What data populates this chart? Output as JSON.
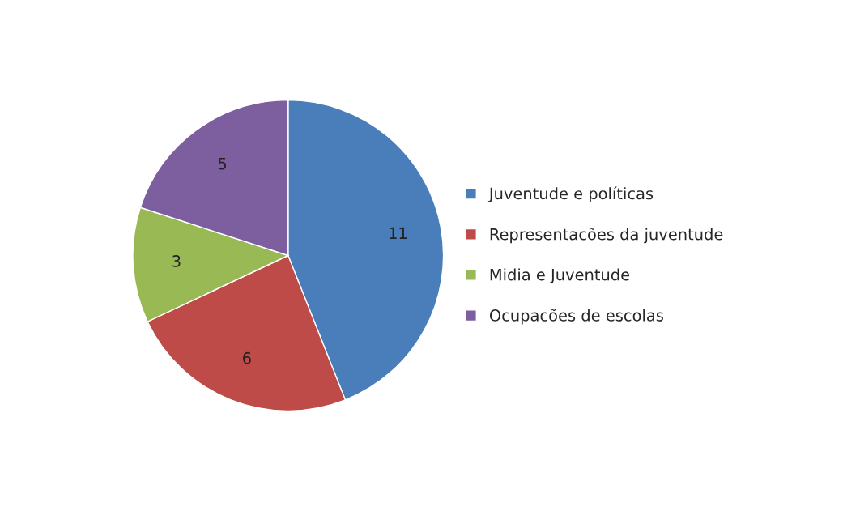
{
  "chart_data": {
    "type": "pie",
    "categories": [
      "Juventude e políticas",
      "Representacões da juventude",
      "Midia e Juventude",
      "Ocupacões de escolas"
    ],
    "values": [
      11,
      6,
      3,
      5
    ],
    "colors": [
      "#4a7ebb",
      "#be4b48",
      "#98b954",
      "#7d5fa0"
    ],
    "data_labels": true,
    "legend": "right"
  }
}
